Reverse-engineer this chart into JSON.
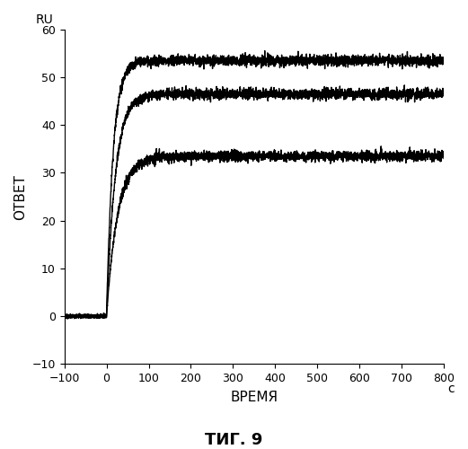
{
  "title": "ΤИГ. 9",
  "xlabel": "ВРЕМЯ",
  "ylabel": "ОТВЕТ",
  "ylabel_top": "RU",
  "xlabel_right": "с",
  "xlim": [
    -100,
    800
  ],
  "ylim": [
    -10,
    60
  ],
  "xticks": [
    -100,
    0,
    100,
    200,
    300,
    400,
    500,
    600,
    700,
    800
  ],
  "yticks": [
    -10,
    0,
    10,
    20,
    30,
    40,
    50,
    60
  ],
  "curve_plateaus": [
    53.5,
    46.5,
    33.5
  ],
  "t_start": 0,
  "noise_amplitude": 0.55,
  "background_color": "#ffffff",
  "line_color": "#000000",
  "line_width": 1.0,
  "k_factors": [
    0.065,
    0.048,
    0.038
  ],
  "figsize": [
    5.21,
    5.0
  ],
  "dpi": 100
}
